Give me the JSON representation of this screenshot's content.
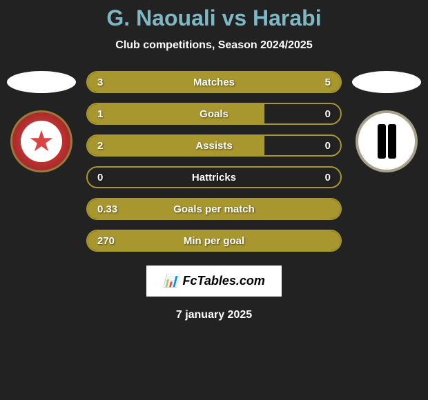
{
  "title": "G. Naouali vs Harabi",
  "subtitle": "Club competitions, Season 2024/2025",
  "date": "7 january 2025",
  "footer": "FcTables.com",
  "colors": {
    "background": "#222222",
    "title": "#7fb8c4",
    "text": "#ffffff",
    "bar_fill": "#a8962f",
    "bar_border": "#a8962f",
    "badge_left_bg": "#d94545",
    "badge_right_bg": "#ffffff"
  },
  "stats": [
    {
      "label": "Matches",
      "left_value": "3",
      "right_value": "5",
      "left_width": 37.5,
      "right_width": 62.5
    },
    {
      "label": "Goals",
      "left_value": "1",
      "right_value": "0",
      "left_width": 70,
      "right_width": 0
    },
    {
      "label": "Assists",
      "left_value": "2",
      "right_value": "0",
      "left_width": 70,
      "right_width": 0
    },
    {
      "label": "Hattricks",
      "left_value": "0",
      "right_value": "0",
      "left_width": 0,
      "right_width": 0
    },
    {
      "label": "Goals per match",
      "left_value": "0.33",
      "right_value": "",
      "left_width": 100,
      "right_width": 0
    },
    {
      "label": "Min per goal",
      "left_value": "270",
      "right_value": "",
      "left_width": 100,
      "right_width": 0
    }
  ]
}
